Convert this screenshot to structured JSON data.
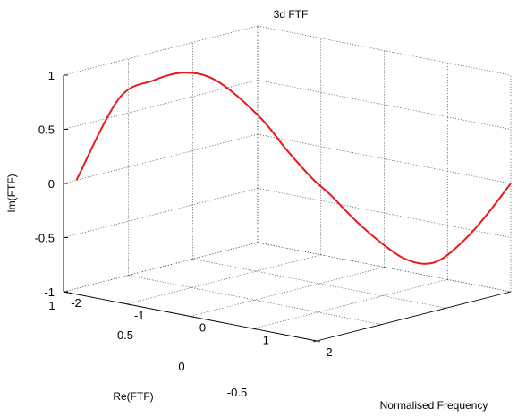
{
  "chart_data": {
    "type": "line",
    "projection": "3d",
    "title": "3d FTF",
    "xlabel": "Normalised Frequency",
    "ylabel": "Re(FTF)",
    "zlabel": "Im(FTF)",
    "xlim": [
      -2,
      2
    ],
    "ylim": [
      -0.5,
      1
    ],
    "zlim": [
      -1,
      1
    ],
    "xticks": [
      "-2",
      "-1",
      "0",
      "1",
      "2"
    ],
    "yticks": [
      "-0.5",
      "0",
      "0.5",
      "1"
    ],
    "zticks": [
      "-1",
      "-0.5",
      "0",
      "0.5",
      "1"
    ],
    "grid": true,
    "series": [
      {
        "color": "#e8191b",
        "x": [
          -2,
          -1.5,
          -1.2,
          -1,
          -0.8,
          -0.5,
          -0.3,
          -0.1,
          0,
          0.2,
          0.4,
          0.6,
          0.8,
          1.0,
          1.3,
          1.6,
          2.0
        ],
        "y": [
          0.9,
          0.82,
          0.7,
          0.55,
          0.4,
          0.22,
          0.1,
          0.0,
          -0.08,
          -0.18,
          -0.27,
          -0.35,
          -0.41,
          -0.45,
          -0.48,
          -0.5,
          -0.5
        ],
        "z": [
          0.0,
          0.78,
          0.95,
          1.0,
          0.9,
          0.55,
          0.22,
          -0.05,
          -0.2,
          -0.45,
          -0.65,
          -0.8,
          -0.85,
          -0.8,
          -0.6,
          -0.35,
          0.0
        ]
      }
    ]
  }
}
